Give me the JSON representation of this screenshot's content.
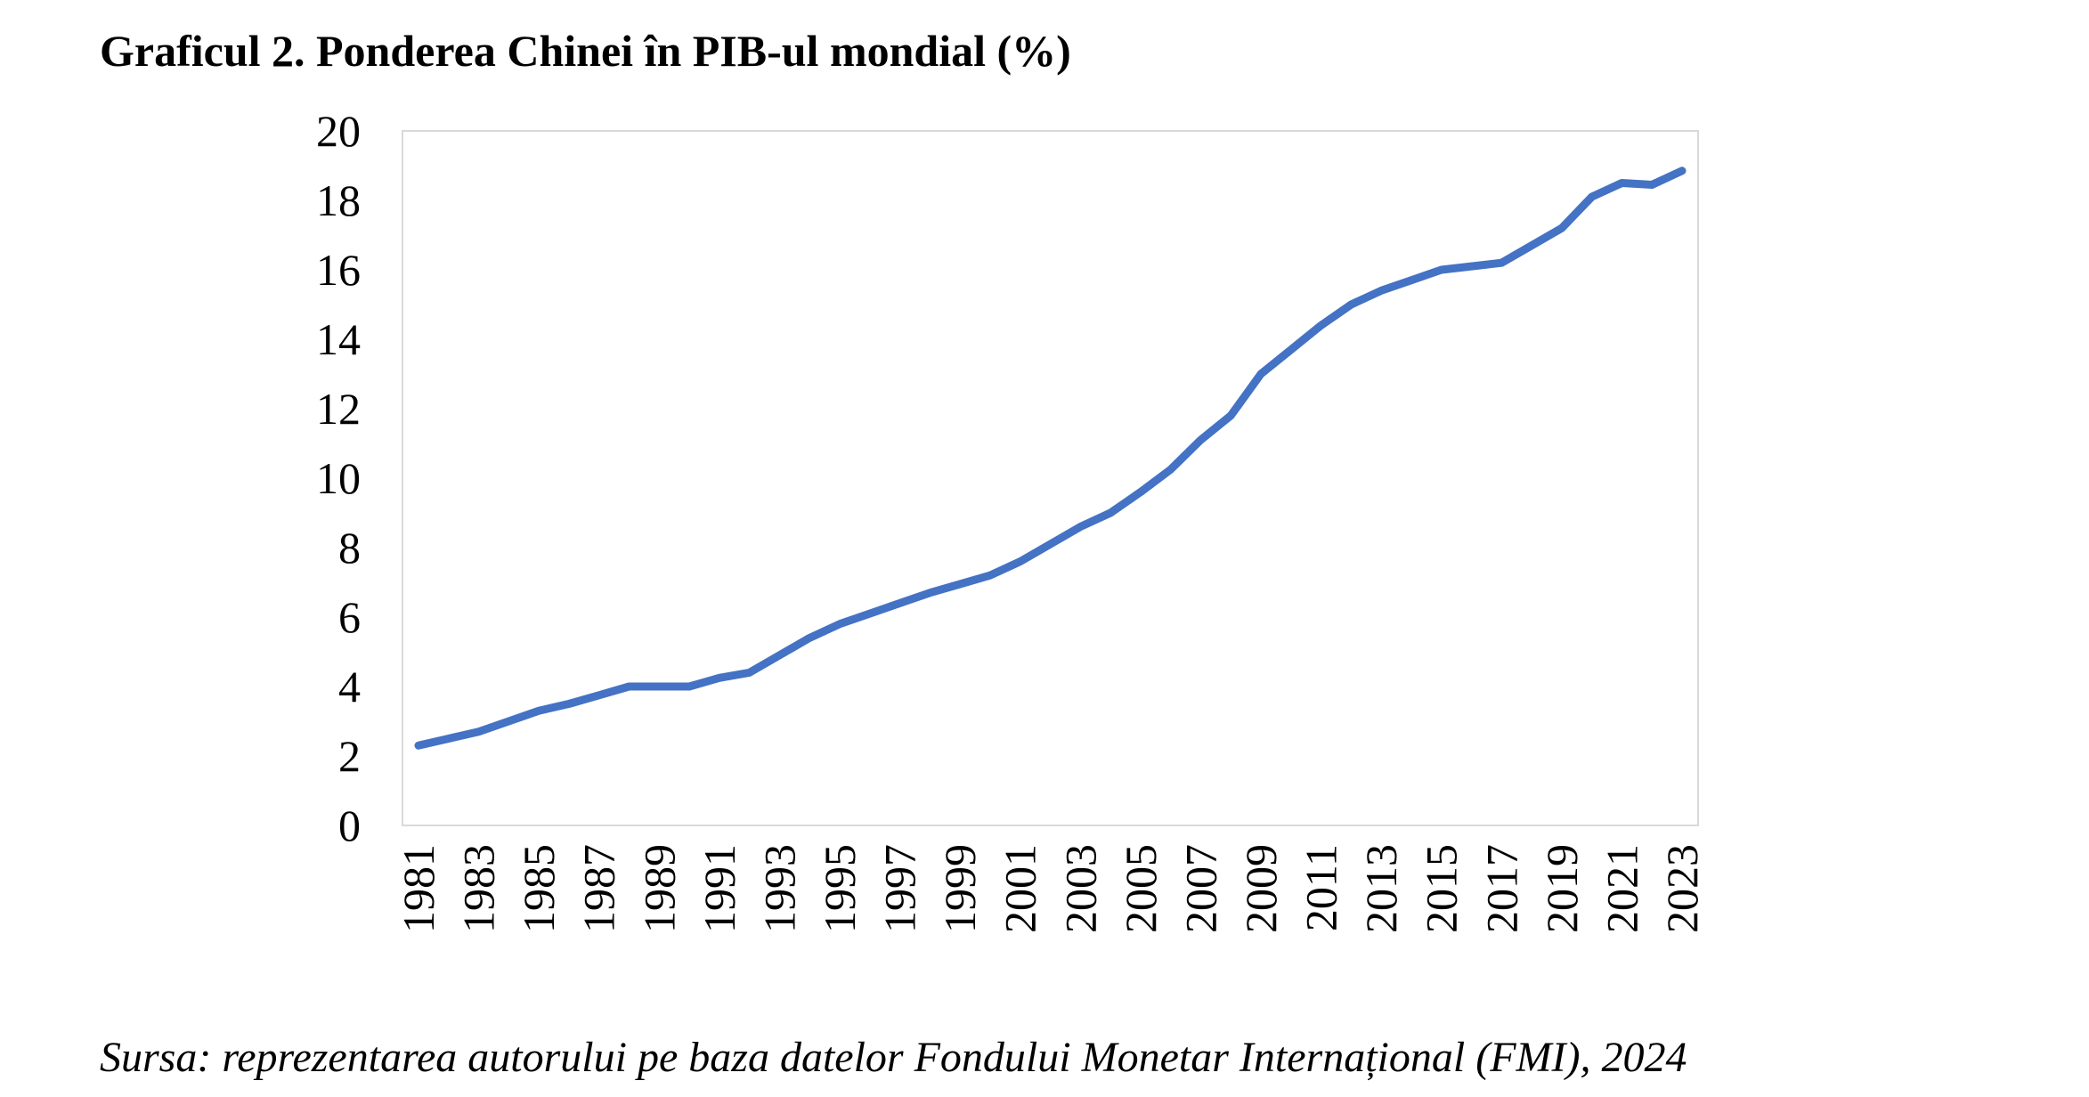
{
  "chart_data": {
    "type": "line",
    "title": "Graficul 2. Ponderea Chinei în PIB-ul mondial (%)",
    "source": "Sursa: reprezentarea autorului pe baza datelor Fondului Monetar Internațional (FMI), 2024",
    "xlabel": "",
    "ylabel": "",
    "ylim": [
      0,
      20
    ],
    "y_ticks": [
      "0",
      "2",
      "4",
      "6",
      "8",
      "10",
      "12",
      "14",
      "16",
      "18",
      "20"
    ],
    "x_tick_labels": [
      "1981",
      "1983",
      "1985",
      "1987",
      "1989",
      "1991",
      "1993",
      "1995",
      "1997",
      "1999",
      "2001",
      "2003",
      "2005",
      "2007",
      "2009",
      "2011",
      "2013",
      "2015",
      "2017",
      "2019",
      "2021",
      "2023"
    ],
    "grid": false,
    "legend": "none",
    "line_color": "#4472C4",
    "x": [
      1981,
      1982,
      1983,
      1984,
      1985,
      1986,
      1987,
      1988,
      1989,
      1990,
      1991,
      1992,
      1993,
      1994,
      1995,
      1996,
      1997,
      1998,
      1999,
      2000,
      2001,
      2002,
      2003,
      2004,
      2005,
      2006,
      2007,
      2008,
      2009,
      2010,
      2011,
      2012,
      2013,
      2014,
      2015,
      2016,
      2017,
      2018,
      2019,
      2020,
      2021,
      2022,
      2023
    ],
    "series": [
      {
        "values": [
          2.3,
          2.5,
          2.7,
          3.0,
          3.3,
          3.5,
          3.75,
          4.0,
          4.0,
          4.0,
          4.25,
          4.4,
          4.9,
          5.4,
          5.8,
          6.1,
          6.4,
          6.7,
          6.95,
          7.2,
          7.6,
          8.1,
          8.6,
          9.0,
          9.6,
          10.25,
          11.1,
          11.8,
          13.0,
          13.7,
          14.4,
          15.0,
          15.4,
          15.7,
          16.0,
          16.1,
          16.2,
          16.7,
          17.2,
          18.1,
          18.5,
          18.45,
          18.85
        ]
      }
    ]
  }
}
